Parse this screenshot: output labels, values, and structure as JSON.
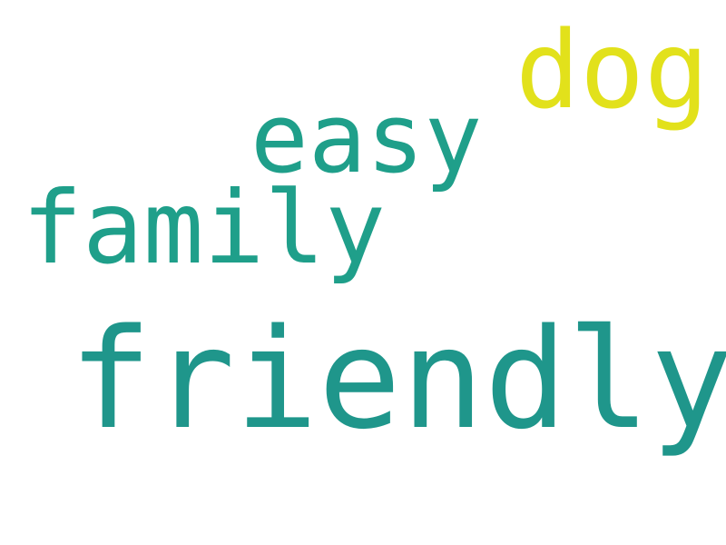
{
  "wordcloud": {
    "words": [
      {
        "text": "dog",
        "color": "#e2e11b"
      },
      {
        "text": "easy",
        "color": "#1f9f8a"
      },
      {
        "text": "family",
        "color": "#1f9f8a"
      },
      {
        "text": "friendly",
        "color": "#1f968b"
      }
    ]
  }
}
